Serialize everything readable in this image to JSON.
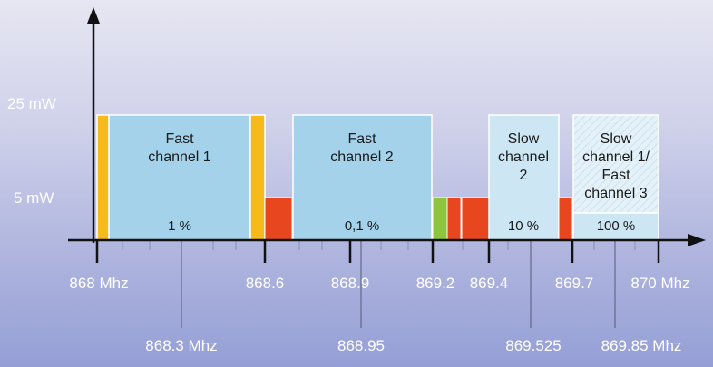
{
  "y_labels": {
    "high": "25 mW",
    "low": "5 mW"
  },
  "bands": [
    {
      "line1": "Fast",
      "line2": "channel 1",
      "line3": "",
      "duty": "1 %"
    },
    {
      "line1": "Fast",
      "line2": "channel 2",
      "line3": "",
      "duty": "0,1 %"
    },
    {
      "line1": "Slow",
      "line2": "channel",
      "line3": "2",
      "duty": "10 %"
    },
    {
      "line1": "Slow",
      "line2": "channel 1/",
      "line3": "Fast",
      "line4": "channel 3",
      "duty": "100 %"
    }
  ],
  "top_ticks": [
    "868 Mhz",
    "868.6",
    "868.9",
    "869.2",
    "869.4",
    "869.7",
    "870 Mhz"
  ],
  "bottom_ticks": [
    "868.3 Mhz",
    "868.95",
    "869.525",
    "869.85 Mhz"
  ],
  "colors": {
    "band_fill": "#a3d2ea",
    "band_light": "#cde6f4",
    "yellow": "#f6bb1a",
    "red": "#e8461e",
    "green": "#8cc63f",
    "axis": "#111111"
  }
}
